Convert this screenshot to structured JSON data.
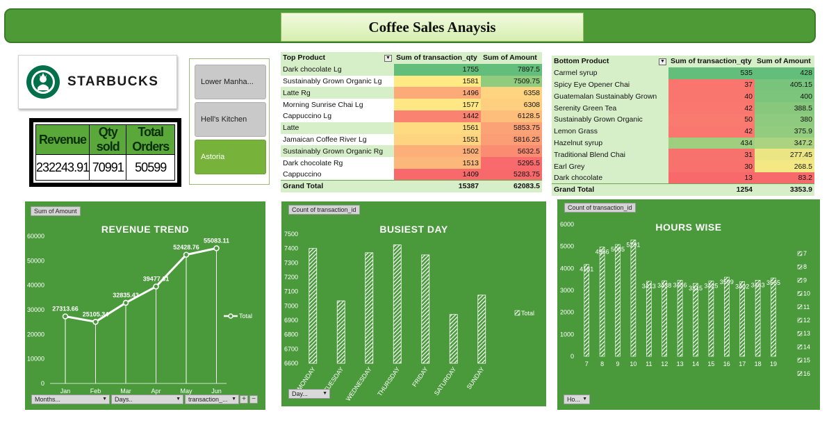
{
  "title": "Coffee Sales Anaysis",
  "logo": {
    "word": "STARBUCKS",
    "icon": "starbucks-siren-icon",
    "colors": {
      "green": "#00704a"
    }
  },
  "kpi": {
    "headers": [
      "Revenue",
      "Qty sold",
      "Total Orders"
    ],
    "values": [
      "232243.91",
      "70991",
      "50599"
    ]
  },
  "slicer": {
    "items": [
      "Lower Manha...",
      "Hell's Kitchen",
      "Astoria"
    ],
    "selected": "Astoria"
  },
  "top_products": {
    "headers": [
      "Top Product",
      "Sum of transaction_qty",
      "Sum of Amount"
    ],
    "rows": [
      [
        "Dark chocolate Lg",
        "1755",
        "7897.5"
      ],
      [
        "Sustainably Grown Organic Lg",
        "1581",
        "7509.75"
      ],
      [
        "Latte Rg",
        "1496",
        "6358"
      ],
      [
        "Morning Sunrise Chai Lg",
        "1577",
        "6308"
      ],
      [
        "Cappuccino Lg",
        "1442",
        "6128.5"
      ],
      [
        "Latte",
        "1561",
        "5853.75"
      ],
      [
        "Jamaican Coffee River Lg",
        "1551",
        "5816.25"
      ],
      [
        "Sustainably Grown Organic Rg",
        "1502",
        "5632.5"
      ],
      [
        "Dark chocolate Rg",
        "1513",
        "5295.5"
      ],
      [
        "Cappuccino",
        "1409",
        "5283.75"
      ]
    ],
    "total": [
      "Grand Total",
      "15387",
      "62083.5"
    ]
  },
  "bottom_products": {
    "headers": [
      "Bottom Product",
      "Sum of transaction_qty",
      "Sum of Amount"
    ],
    "rows": [
      [
        "Carmel syrup",
        "535",
        "428"
      ],
      [
        "Spicy Eye Opener Chai",
        "37",
        "405.15"
      ],
      [
        "Guatemalan Sustainably Grown",
        "40",
        "400"
      ],
      [
        "Serenity Green Tea",
        "42",
        "388.5"
      ],
      [
        "Sustainably Grown Organic",
        "50",
        "380"
      ],
      [
        "Lemon Grass",
        "42",
        "375.9"
      ],
      [
        "Hazelnut syrup",
        "434",
        "347.2"
      ],
      [
        "Traditional Blend Chai",
        "31",
        "277.45"
      ],
      [
        "Earl Grey",
        "30",
        "268.5"
      ],
      [
        "Dark chocolate",
        "13",
        "83.2"
      ]
    ],
    "total": [
      "Grand Total",
      "1254",
      "3353.9"
    ]
  },
  "charts": {
    "revenue": {
      "field_button": "Sum of Amount",
      "dropdowns": [
        "Months...",
        "Days..",
        "transaction_..."
      ]
    },
    "busiest": {
      "field_button": "Count of transaction_id",
      "dropdowns": [
        "Day..."
      ]
    },
    "hours": {
      "field_button": "Count of transaction_id",
      "dropdowns": [
        "Ho..."
      ]
    }
  },
  "chart_data": [
    {
      "type": "line",
      "title": "REVENUE TREND",
      "categories": [
        "Jan",
        "Feb",
        "Mar",
        "Apr",
        "May",
        "Jun"
      ],
      "series": [
        {
          "name": "Total",
          "values": [
            27313.66,
            25105.34,
            32835.43,
            39477.61,
            52428.76,
            55083.11
          ]
        }
      ],
      "value_labels": [
        "27313.66",
        "25105.34",
        "32835.43",
        "39477.61",
        "52428.76",
        "55083.11"
      ],
      "ylim": [
        0,
        60000
      ],
      "yticks": [
        0,
        10000,
        20000,
        30000,
        40000,
        50000,
        60000
      ],
      "legend": "right"
    },
    {
      "type": "bar",
      "title": "BUSIEST DAY",
      "categories": [
        "MONDAY",
        "TUESDAY",
        "WEDNESDAY",
        "THURSDAY",
        "FRIDAY",
        "SATURDAY",
        "SUNDAY"
      ],
      "series": [
        {
          "name": "Total",
          "values": [
            7400,
            7035,
            7370,
            7425,
            7355,
            6940,
            7075
          ]
        }
      ],
      "ylim": [
        6600,
        7500
      ],
      "yticks": [
        6600,
        6700,
        6800,
        6900,
        7000,
        7100,
        7200,
        7300,
        7400,
        7500
      ],
      "legend": "right"
    },
    {
      "type": "bar",
      "title": "HOURS WISE",
      "categories": [
        "7",
        "8",
        "9",
        "10",
        "11",
        "12",
        "13",
        "14",
        "15",
        "16",
        "17",
        "18",
        "19"
      ],
      "values": [
        4181,
        4966,
        5085,
        5291,
        3413,
        3438,
        3456,
        3315,
        3425,
        3599,
        3402,
        3463,
        3565
      ],
      "value_labels": [
        "4181",
        "4966",
        "5085",
        "5291",
        "3413",
        "3438",
        "3456",
        "3315",
        "3425",
        "3599",
        "3402",
        "3463",
        "3565"
      ],
      "ylim": [
        0,
        6000
      ],
      "yticks": [
        0,
        1000,
        2000,
        3000,
        4000,
        5000,
        6000
      ],
      "legend_entries": [
        "7",
        "8",
        "9",
        "10",
        "11",
        "12",
        "13",
        "14",
        "15",
        "16"
      ],
      "legend": "right"
    }
  ]
}
